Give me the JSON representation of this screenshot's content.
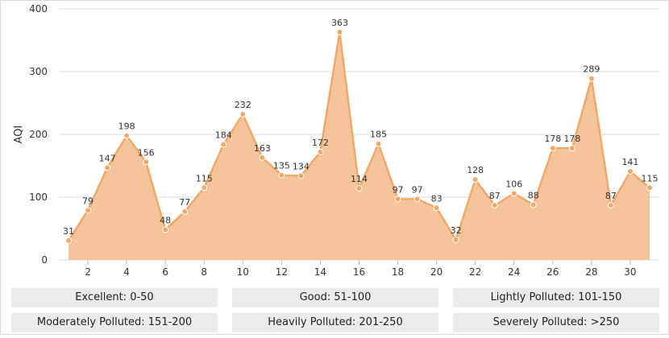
{
  "chart_data": {
    "type": "area",
    "ylabel": "AQI",
    "xlabel": "",
    "ylim": [
      0,
      400
    ],
    "yticks": [
      0,
      100,
      200,
      300,
      400
    ],
    "xlim": [
      0.5,
      31.5
    ],
    "xticks": [
      2,
      4,
      6,
      8,
      10,
      12,
      14,
      16,
      18,
      20,
      22,
      24,
      26,
      28,
      30
    ],
    "grid": true,
    "x": [
      1,
      2,
      3,
      4,
      5,
      6,
      7,
      8,
      9,
      10,
      11,
      12,
      13,
      14,
      15,
      16,
      17,
      18,
      19,
      20,
      21,
      22,
      23,
      24,
      25,
      26,
      27,
      28,
      29,
      30,
      31
    ],
    "values": [
      31,
      79,
      147,
      198,
      156,
      48,
      77,
      115,
      184,
      232,
      163,
      135,
      134,
      172,
      363,
      114,
      185,
      97,
      97,
      83,
      32,
      128,
      87,
      106,
      88,
      178,
      178,
      289,
      87,
      141,
      115
    ],
    "colors": {
      "fill": "#f5c49a",
      "line": "#f0a868",
      "marker": "#f0a868",
      "grid": "#d9d9d9",
      "text": "#333333"
    }
  },
  "legend": {
    "rows": [
      [
        "Excellent: 0-50",
        "Good: 51-100",
        "Lightly Polluted: 101-150"
      ],
      [
        "Moderately Polluted: 151-200",
        "Heavily Polluted: 201-250",
        "Severely Polluted: >250"
      ]
    ]
  }
}
